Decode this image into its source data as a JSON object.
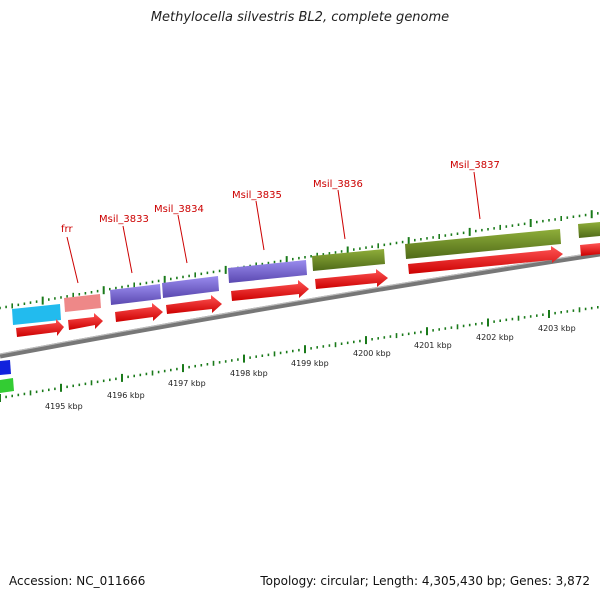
{
  "title": "Methylocella silvestris BL2, complete genome",
  "footer": {
    "accession": "Accession: NC_011666",
    "summary": "Topology: circular; Length: 4,305,430 bp; Genes: 3,872"
  },
  "scale_labels": [
    "4195 kbp",
    "4196 kbp",
    "4197 kbp",
    "4198 kbp",
    "4199 kbp",
    "4200 kbp",
    "4201 kbp",
    "4202 kbp",
    "4203 kbp"
  ],
  "gene_labels": [
    "frr",
    "Msil_3833",
    "Msil_3834",
    "Msil_3835",
    "Msil_3836",
    "Msil_3837"
  ],
  "colors": {
    "backbone": "#8a8a8a",
    "cds": "#ee1111",
    "label": "#cc0000",
    "tick": "#1a7a1a",
    "feature_cyan": "#22bbee",
    "feature_pink": "#ee8888",
    "feature_purple": "#7766cc",
    "feature_olive": "#6e8a2a",
    "feature_blue": "#1122dd",
    "feature_green": "#33cc33"
  }
}
